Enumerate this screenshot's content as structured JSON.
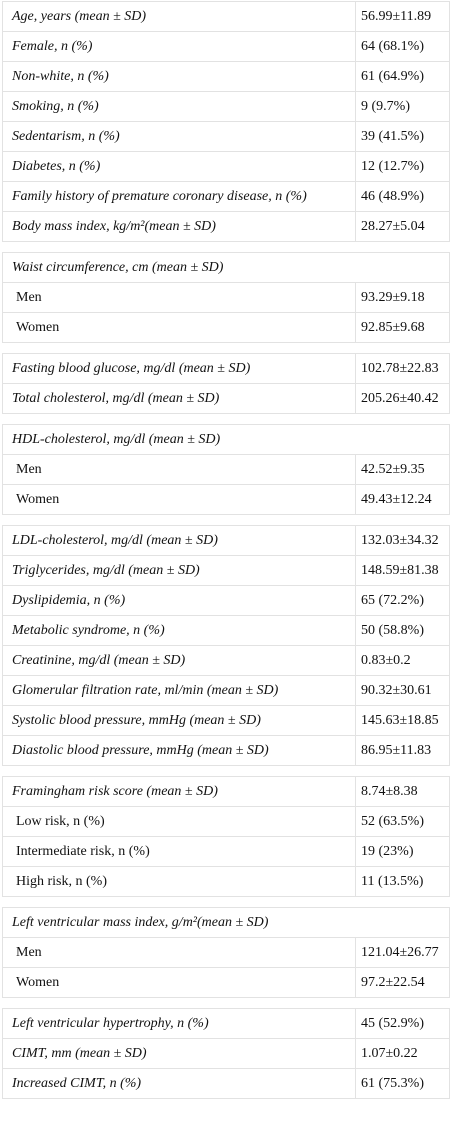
{
  "table": {
    "groups": [
      {
        "rows": [
          {
            "label": "Age, years (mean ± SD)",
            "value": "56.99±11.89"
          },
          {
            "label": "Female, n (%)",
            "value": "64 (68.1%)"
          },
          {
            "label": "Non-white, n (%)",
            "value": "61 (64.9%)"
          },
          {
            "label": "Smoking, n (%)",
            "value": "9 (9.7%)"
          },
          {
            "label": "Sedentarism, n (%)",
            "value": "39 (41.5%)"
          },
          {
            "label": "Diabetes, n (%)",
            "value": "12 (12.7%)"
          },
          {
            "label": "Family history of premature coronary disease, n (%)",
            "value": "46 (48.9%)"
          },
          {
            "label": "Body mass index, kg/m²(mean ± SD)",
            "value": "28.27±5.04"
          }
        ]
      },
      {
        "head": {
          "label": "Waist circumference, cm (mean ± SD)"
        },
        "sub": [
          {
            "label": "Men",
            "value": "93.29±9.18"
          },
          {
            "label": "Women",
            "value": "92.85±9.68"
          }
        ]
      },
      {
        "rows": [
          {
            "label": "Fasting blood glucose, mg/dl (mean ± SD)",
            "value": "102.78±22.83"
          },
          {
            "label": "Total cholesterol, mg/dl (mean ± SD)",
            "value": "205.26±40.42"
          }
        ]
      },
      {
        "head": {
          "label": "HDL-cholesterol, mg/dl (mean ± SD)"
        },
        "sub": [
          {
            "label": "Men",
            "value": "42.52±9.35"
          },
          {
            "label": "Women",
            "value": "49.43±12.24"
          }
        ]
      },
      {
        "rows": [
          {
            "label": "LDL-cholesterol, mg/dl (mean ± SD)",
            "value": "132.03±34.32"
          },
          {
            "label": "Triglycerides, mg/dl (mean ± SD)",
            "value": "148.59±81.38"
          },
          {
            "label": "Dyslipidemia, n (%)",
            "value": "65 (72.2%)"
          },
          {
            "label": "Metabolic syndrome, n (%)",
            "value": "50 (58.8%)"
          },
          {
            "label": "Creatinine, mg/dl (mean ± SD)",
            "value": "0.83±0.2"
          },
          {
            "label": "Glomerular filtration rate, ml/min (mean ± SD)",
            "value": "90.32±30.61"
          },
          {
            "label": "Systolic blood pressure, mmHg (mean ± SD)",
            "value": "145.63±18.85"
          },
          {
            "label": "Diastolic blood pressure, mmHg (mean ± SD)",
            "value": "86.95±11.83"
          }
        ]
      },
      {
        "head": {
          "label": "Framingham risk score (mean ± SD)",
          "value": "8.74±8.38"
        },
        "sub": [
          {
            "label": "Low risk, n (%)",
            "value": "52 (63.5%)"
          },
          {
            "label": "Intermediate risk, n (%)",
            "value": "19 (23%)"
          },
          {
            "label": "High risk, n (%)",
            "value": "11 (13.5%)"
          }
        ]
      },
      {
        "head": {
          "label": "Left ventricular mass index, g/m²(mean ± SD)"
        },
        "sub": [
          {
            "label": "Men",
            "value": "121.04±26.77"
          },
          {
            "label": "Women",
            "value": "97.2±22.54"
          }
        ]
      },
      {
        "rows": [
          {
            "label": "Left ventricular hypertrophy, n (%)",
            "value": "45 (52.9%)"
          },
          {
            "label": "CIMT, mm (mean ± SD)",
            "value": "1.07±0.22"
          },
          {
            "label": "Increased CIMT, n (%)",
            "value": "61 (75.3%)"
          }
        ]
      }
    ]
  }
}
